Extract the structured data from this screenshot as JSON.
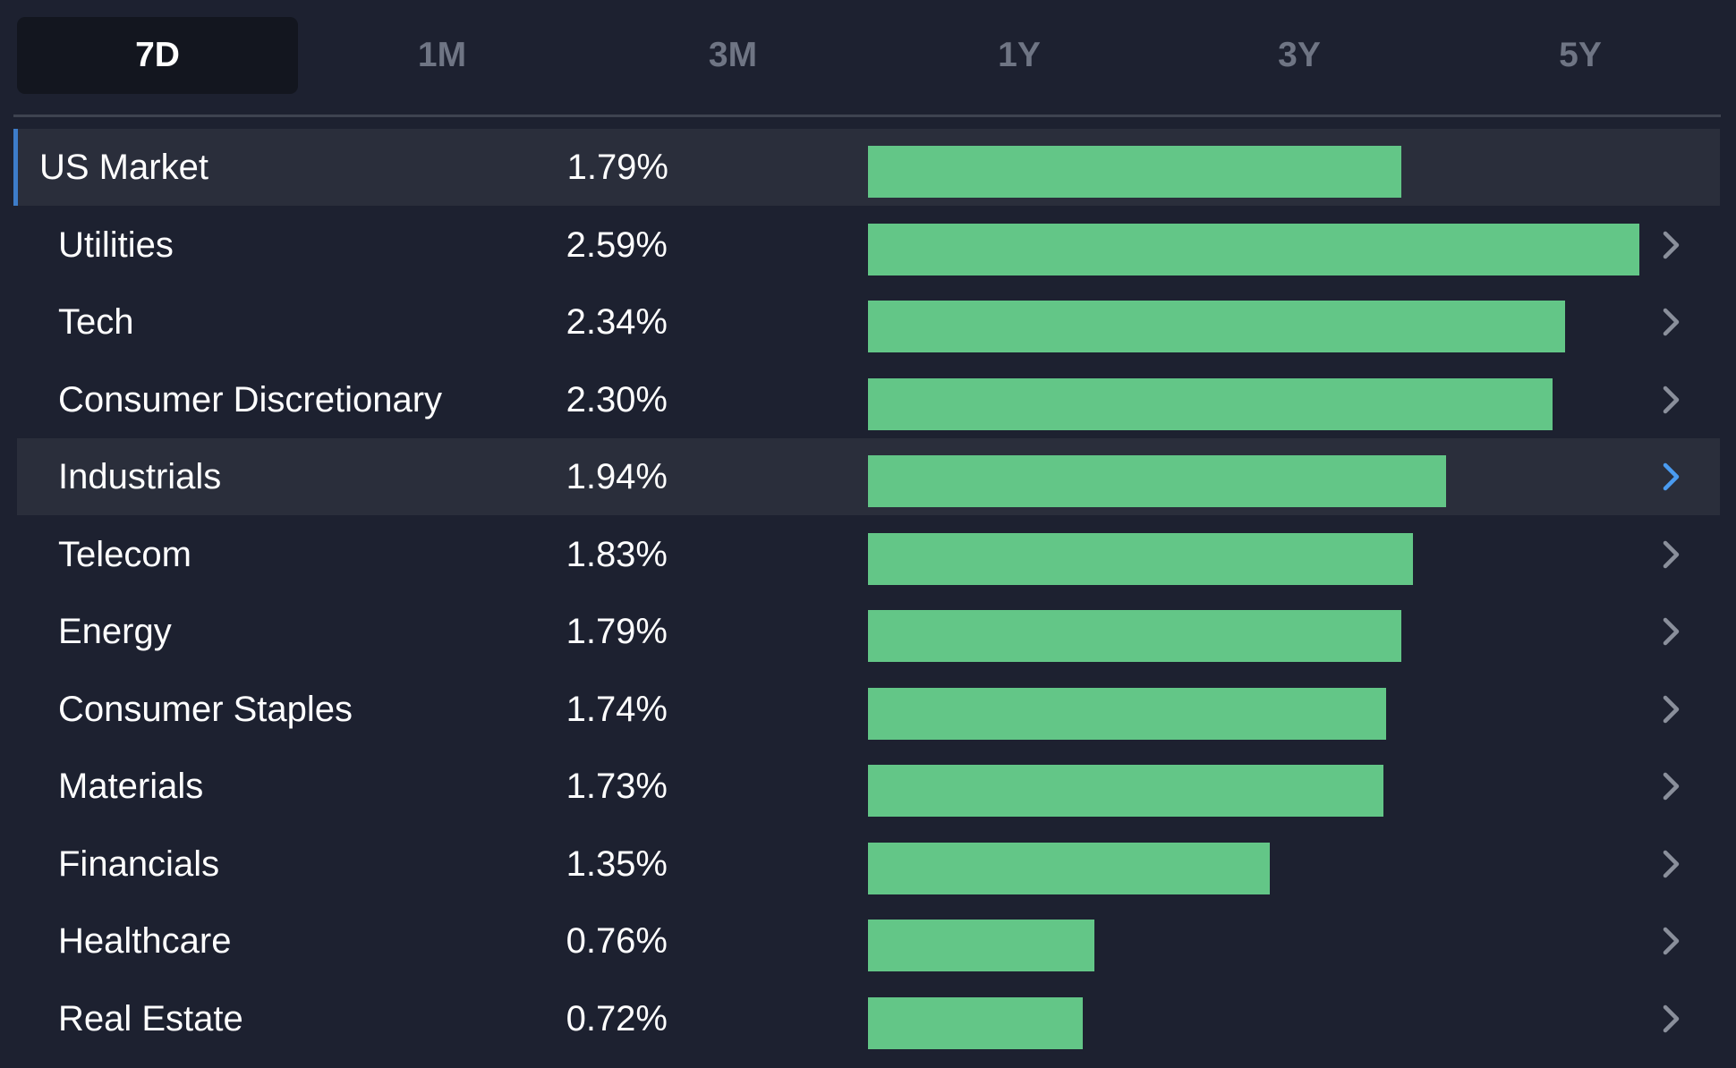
{
  "colors": {
    "background": "#1d2130",
    "active_tab_bg": "#13161f",
    "bar": "#63c687",
    "highlight_row": "#2a2e3b",
    "accent_blue": "#3d7cc9",
    "chevron_default": "#8a8f9b",
    "chevron_active": "#4a9bf0"
  },
  "tabs": [
    {
      "label": "7D",
      "active": true
    },
    {
      "label": "1M",
      "active": false
    },
    {
      "label": "3M",
      "active": false
    },
    {
      "label": "1Y",
      "active": false
    },
    {
      "label": "3Y",
      "active": false
    },
    {
      "label": "5Y",
      "active": false
    }
  ],
  "market": {
    "label": "US Market",
    "value": "1.79%",
    "pct": 1.79
  },
  "sectors": [
    {
      "label": "Utilities",
      "value": "2.59%",
      "pct": 2.59,
      "icon": "chevron-right-icon",
      "highlight": false
    },
    {
      "label": "Tech",
      "value": "2.34%",
      "pct": 2.34,
      "icon": "chevron-right-icon",
      "highlight": false
    },
    {
      "label": "Consumer Discretionary",
      "value": "2.30%",
      "pct": 2.3,
      "icon": "chevron-right-icon",
      "highlight": false
    },
    {
      "label": "Industrials",
      "value": "1.94%",
      "pct": 1.94,
      "icon": "chevron-right-icon",
      "highlight": true
    },
    {
      "label": "Telecom",
      "value": "1.83%",
      "pct": 1.83,
      "icon": "chevron-right-icon",
      "highlight": false
    },
    {
      "label": "Energy",
      "value": "1.79%",
      "pct": 1.79,
      "icon": "chevron-right-icon",
      "highlight": false
    },
    {
      "label": "Consumer Staples",
      "value": "1.74%",
      "pct": 1.74,
      "icon": "chevron-right-icon",
      "highlight": false
    },
    {
      "label": "Materials",
      "value": "1.73%",
      "pct": 1.73,
      "icon": "chevron-right-icon",
      "highlight": false
    },
    {
      "label": "Financials",
      "value": "1.35%",
      "pct": 1.35,
      "icon": "chevron-right-icon",
      "highlight": false
    },
    {
      "label": "Healthcare",
      "value": "0.76%",
      "pct": 0.76,
      "icon": "chevron-right-icon",
      "highlight": false
    },
    {
      "label": "Real Estate",
      "value": "0.72%",
      "pct": 0.72,
      "icon": "chevron-right-icon",
      "highlight": false
    }
  ],
  "chart_data": {
    "type": "bar",
    "orientation": "horizontal",
    "categories": [
      "US Market",
      "Utilities",
      "Tech",
      "Consumer Discretionary",
      "Industrials",
      "Telecom",
      "Energy",
      "Consumer Staples",
      "Materials",
      "Financials",
      "Healthcare",
      "Real Estate"
    ],
    "values": [
      1.79,
      2.59,
      2.34,
      2.3,
      1.94,
      1.83,
      1.79,
      1.74,
      1.73,
      1.35,
      0.76,
      0.72
    ],
    "unit": "%",
    "title": "",
    "xlabel": "",
    "ylabel": ""
  }
}
